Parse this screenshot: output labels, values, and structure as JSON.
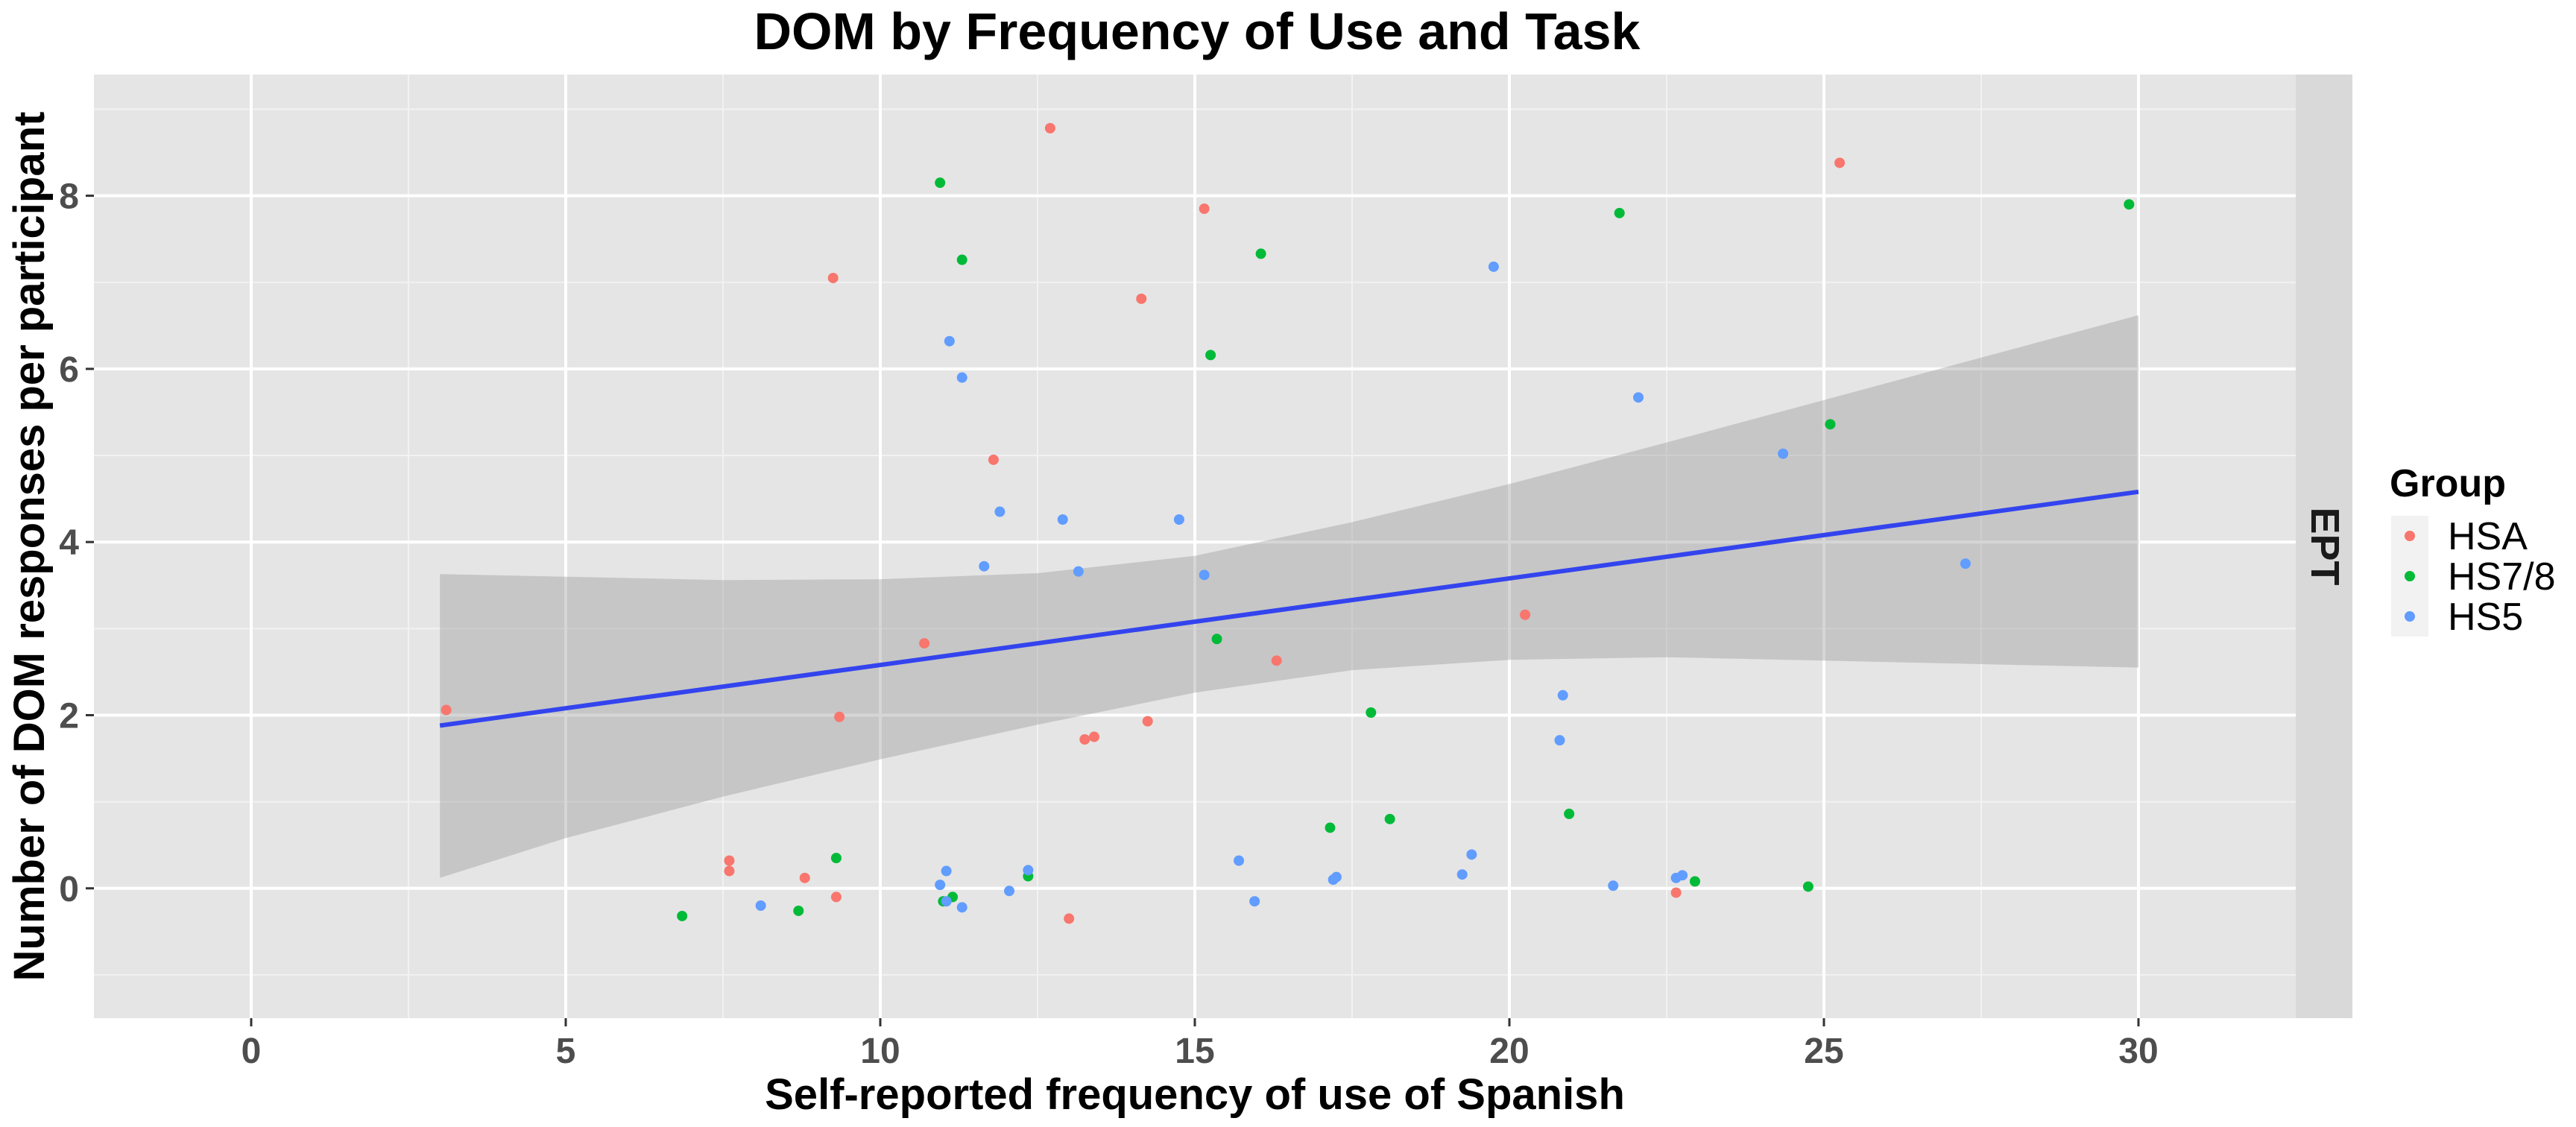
{
  "chart_data": {
    "type": "scatter",
    "title": "DOM by Frequency of Use and Task",
    "xlabel": "Self-reported frequency of use of Spanish",
    "ylabel": "Number of DOM responses per participant",
    "xlim": [
      -2.5,
      32.5
    ],
    "ylim": [
      -1.5,
      9.4
    ],
    "xticks": [
      0,
      5,
      10,
      15,
      20,
      25,
      30
    ],
    "yticks": [
      0,
      2,
      4,
      6,
      8
    ],
    "grid": true,
    "facet_label": "EPT",
    "legend": {
      "title": "Group",
      "position": "right"
    },
    "series": [
      {
        "name": "HSA",
        "color": "#F8766D",
        "points": [
          [
            3.1,
            2.06
          ],
          [
            7.6,
            0.32
          ],
          [
            7.6,
            0.2
          ],
          [
            8.8,
            0.12
          ],
          [
            9.25,
            7.05
          ],
          [
            9.3,
            -0.1
          ],
          [
            9.35,
            1.98
          ],
          [
            10.7,
            2.83
          ],
          [
            11.8,
            4.95
          ],
          [
            12.7,
            8.78
          ],
          [
            13.0,
            -0.35
          ],
          [
            13.25,
            1.72
          ],
          [
            13.4,
            1.75
          ],
          [
            14.15,
            6.81
          ],
          [
            14.25,
            1.93
          ],
          [
            15.15,
            7.85
          ],
          [
            16.3,
            2.63
          ],
          [
            20.25,
            3.16
          ],
          [
            22.65,
            -0.05
          ],
          [
            25.25,
            8.38
          ]
        ]
      },
      {
        "name": "HS7/8",
        "color": "#00BA38",
        "points": [
          [
            6.85,
            -0.32
          ],
          [
            8.7,
            -0.26
          ],
          [
            9.3,
            0.35
          ],
          [
            10.95,
            8.15
          ],
          [
            11.0,
            -0.15
          ],
          [
            11.15,
            -0.1
          ],
          [
            11.3,
            7.26
          ],
          [
            12.35,
            0.14
          ],
          [
            15.25,
            6.16
          ],
          [
            15.35,
            2.88
          ],
          [
            16.05,
            7.33
          ],
          [
            17.15,
            0.7
          ],
          [
            17.8,
            2.03
          ],
          [
            18.1,
            0.8
          ],
          [
            20.95,
            0.86
          ],
          [
            21.75,
            7.8
          ],
          [
            22.95,
            0.08
          ],
          [
            24.75,
            0.02
          ],
          [
            25.1,
            5.36
          ],
          [
            29.85,
            7.9
          ]
        ]
      },
      {
        "name": "HS5",
        "color": "#619CFF",
        "points": [
          [
            8.1,
            -0.2
          ],
          [
            10.95,
            0.04
          ],
          [
            11.05,
            0.2
          ],
          [
            11.05,
            -0.15
          ],
          [
            11.1,
            6.32
          ],
          [
            11.3,
            5.9
          ],
          [
            11.3,
            -0.22
          ],
          [
            11.65,
            3.72
          ],
          [
            11.9,
            4.35
          ],
          [
            12.05,
            -0.03
          ],
          [
            12.35,
            0.21
          ],
          [
            12.9,
            4.26
          ],
          [
            13.15,
            3.66
          ],
          [
            14.75,
            4.26
          ],
          [
            15.15,
            3.62
          ],
          [
            15.7,
            0.32
          ],
          [
            15.95,
            -0.15
          ],
          [
            17.2,
            0.1
          ],
          [
            17.25,
            0.13
          ],
          [
            19.25,
            0.16
          ],
          [
            19.4,
            0.39
          ],
          [
            19.75,
            7.18
          ],
          [
            20.8,
            1.71
          ],
          [
            20.85,
            2.23
          ],
          [
            21.65,
            0.03
          ],
          [
            22.05,
            5.67
          ],
          [
            22.65,
            0.12
          ],
          [
            22.75,
            0.15
          ],
          [
            24.35,
            5.02
          ],
          [
            27.25,
            3.75
          ]
        ]
      }
    ],
    "trend_line": {
      "color": "#3344EE",
      "x": [
        3.0,
        30.0
      ],
      "y": [
        1.88,
        4.58
      ],
      "confidence_band": {
        "x": [
          3.0,
          5.0,
          7.5,
          10.0,
          12.5,
          15.0,
          17.5,
          20.0,
          22.5,
          25.0,
          27.5,
          30.0
        ],
        "lower": [
          0.12,
          0.58,
          1.06,
          1.49,
          1.89,
          2.26,
          2.52,
          2.64,
          2.67,
          2.63,
          2.59,
          2.55
        ],
        "upper": [
          3.63,
          3.6,
          3.56,
          3.57,
          3.64,
          3.84,
          4.23,
          4.67,
          5.15,
          5.64,
          6.13,
          6.62
        ]
      }
    }
  }
}
